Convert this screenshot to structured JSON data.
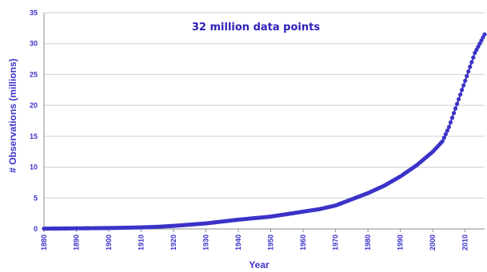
{
  "chart_data": {
    "type": "line",
    "annotation": "32 million data points",
    "xlabel": "Year",
    "ylabel": "# Observations (millions)",
    "xlim": [
      1880,
      2016
    ],
    "ylim": [
      0,
      35
    ],
    "x_ticks": [
      1880,
      1890,
      1900,
      1910,
      1920,
      1930,
      1940,
      1950,
      1960,
      1970,
      1980,
      1990,
      2000,
      2010
    ],
    "y_ticks": [
      0,
      5,
      10,
      15,
      20,
      25,
      30,
      35
    ],
    "grid": true,
    "colors": {
      "series": "#3b33c7",
      "text": "#3b33c7",
      "grid": "#cfcfcf"
    },
    "series": [
      {
        "x": [
          1880,
          1885,
          1890,
          1895,
          1900,
          1905,
          1910,
          1915,
          1920,
          1925,
          1930,
          1935,
          1940,
          1945,
          1950,
          1955,
          1960,
          1965,
          1970,
          1975,
          1980,
          1985,
          1990,
          1995,
          2000,
          2003,
          2005,
          2007,
          2009,
          2011,
          2013,
          2015,
          2016
        ],
        "values": [
          0.05,
          0.07,
          0.1,
          0.12,
          0.15,
          0.2,
          0.25,
          0.35,
          0.5,
          0.7,
          0.9,
          1.2,
          1.5,
          1.75,
          2.0,
          2.4,
          2.8,
          3.2,
          3.8,
          4.8,
          5.8,
          7.0,
          8.5,
          10.3,
          12.5,
          14.2,
          16.5,
          19.5,
          22.5,
          25.5,
          28.5,
          30.5,
          31.5
        ]
      }
    ]
  }
}
